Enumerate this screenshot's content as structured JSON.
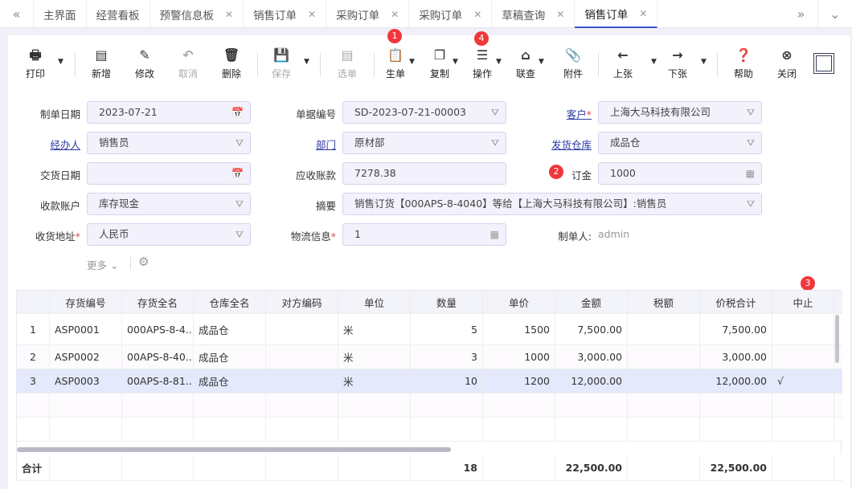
{
  "tabs": {
    "prev": "«",
    "next": "»",
    "more": "⌄",
    "items": [
      {
        "label": "主界面",
        "closable": false
      },
      {
        "label": "经营看板",
        "closable": false
      },
      {
        "label": "预警信息板",
        "closable": true
      },
      {
        "label": "销售订单",
        "closable": true
      },
      {
        "label": "采购订单",
        "closable": true
      },
      {
        "label": "采购订单",
        "closable": true
      },
      {
        "label": "草稿查询",
        "closable": true
      },
      {
        "label": "销售订单",
        "closable": true,
        "active": true
      }
    ]
  },
  "toolbar": {
    "print": "打印",
    "new": "新增",
    "edit": "修改",
    "cancel": "取消",
    "delete": "删除",
    "save": "保存",
    "pick": "选单",
    "generate": "生单",
    "copy": "复制",
    "operate": "操作",
    "link": "联查",
    "attach": "附件",
    "prev": "上张",
    "next": "下张",
    "help": "帮助",
    "close": "关闭"
  },
  "badges": {
    "b1": "1",
    "b2": "2",
    "b3": "3",
    "b4": "4"
  },
  "form": {
    "date_label": "制单日期",
    "date": "2023-07-21",
    "no_label": "单据编号",
    "no": "SD-2023-07-21-00003",
    "customer_label": "客户",
    "customer": "上海大马科技有限公司",
    "handler_label": "经办人",
    "handler": "销售员",
    "dept_label": "部门",
    "dept": "原材部",
    "warehouse_label": "发货仓库",
    "warehouse": "成品仓",
    "delivery_label": "交货日期",
    "delivery": "",
    "receivable_label": "应收账款",
    "receivable": "7278.38",
    "deposit_label": "订金",
    "deposit": "1000",
    "account_label": "收款账户",
    "account": "库存现金",
    "summary_label": "摘要",
    "summary": "销售订货【000APS-8-4040】等给【上海大马科技有限公司】:销售员",
    "address_label": "收货地址",
    "address": "人民币",
    "logistics_label": "物流信息",
    "logistics": "1",
    "maker_label": "制单人:",
    "maker": "admin",
    "more": "更多",
    "required": "*"
  },
  "table": {
    "columns": [
      "",
      "存货编号",
      "存货全名",
      "仓库全名",
      "对方编码",
      "单位",
      "数量",
      "单价",
      "金额",
      "税额",
      "价税合计",
      "中止"
    ],
    "rows": [
      [
        "1",
        "ASP0001",
        "000APS-8-4...",
        "成品仓",
        "",
        "米",
        "5",
        "1500",
        "7,500.00",
        "",
        "7,500.00",
        ""
      ],
      [
        "2",
        "ASP0002",
        "00APS-8-40...",
        "成品仓",
        "",
        "米",
        "3",
        "1000",
        "3,000.00",
        "",
        "3,000.00",
        ""
      ],
      [
        "3",
        "ASP0003",
        "00APS-8-81...",
        "成品仓",
        "",
        "米",
        "10",
        "1200",
        "12,000.00",
        "",
        "12,000.00",
        "√"
      ]
    ],
    "selected_row": 3,
    "total": [
      "合计",
      "",
      "",
      "",
      "",
      "",
      "18",
      "",
      "22,500.00",
      "",
      "22,500.00",
      ""
    ]
  }
}
